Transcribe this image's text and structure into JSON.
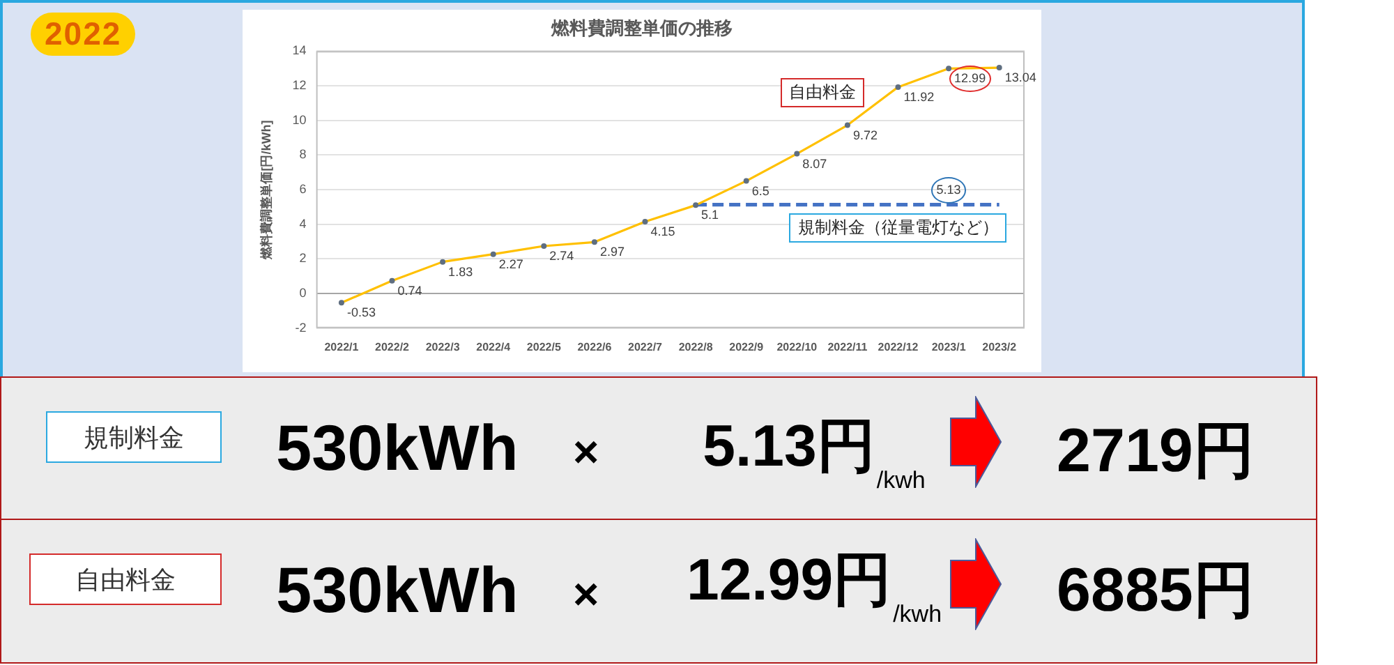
{
  "chart_data": [
    {
      "type": "line",
      "title": "燃料費調整単価の推移",
      "ylabel": "燃料費調整単価[円/kWh]",
      "categories": [
        "2022/1",
        "2022/2",
        "2022/3",
        "2022/4",
        "2022/5",
        "2022/6",
        "2022/7",
        "2022/8",
        "2022/9",
        "2022/10",
        "2022/11",
        "2022/12",
        "2023/1",
        "2023/2"
      ],
      "series": [
        {
          "name": "自由料金",
          "color": "#ffc000",
          "values": [
            -0.53,
            0.74,
            1.83,
            2.27,
            2.74,
            2.97,
            4.15,
            5.1,
            6.5,
            8.07,
            9.72,
            11.92,
            12.99,
            13.04
          ],
          "value_labels": [
            "-0.53",
            "0.74",
            "1.83",
            "2.27",
            "2.74",
            "2.97",
            "4.15",
            "5.1",
            "6.5",
            "8.07",
            "9.72",
            "11.92",
            "12.99",
            "13.04"
          ]
        },
        {
          "name": "規制料金（従量電灯など）",
          "color": "#4472c4",
          "line_style": "dashed",
          "marker": "none",
          "values": [
            null,
            null,
            null,
            null,
            null,
            null,
            null,
            5.13,
            5.13,
            5.13,
            5.13,
            5.13,
            5.13,
            5.13
          ],
          "value_labels": [
            null,
            null,
            null,
            null,
            null,
            null,
            null,
            null,
            null,
            null,
            null,
            null,
            "5.13",
            null
          ]
        }
      ],
      "ylim": [
        -2,
        14
      ],
      "yticks": [
        -2,
        0,
        2,
        4,
        6,
        8,
        10,
        12,
        14
      ],
      "grid": "y",
      "marker": "circle",
      "annotations": [
        "2022"
      ]
    },
    {
      "type": "other",
      "categories": [
        "規制料金",
        "自由料金"
      ],
      "annotations": [
        "530kWh",
        "×",
        "5.13円$_{/kwh}$",
        "2719円",
        "530kWh",
        "×",
        "12.99円$_{/kwh}$",
        "6885円"
      ]
    }
  ]
}
